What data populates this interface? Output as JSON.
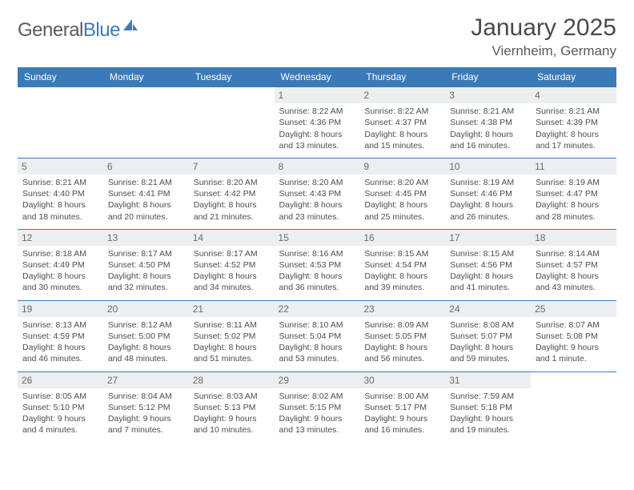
{
  "brand": {
    "name_a": "General",
    "name_b": "Blue",
    "logo_color": "#3b7ab8"
  },
  "title": "January 2025",
  "location": "Viernheim, Germany",
  "colors": {
    "header_bg": "#3b7ab8",
    "header_text": "#ffffff",
    "daynum_bg": "#eceff1",
    "rule": "#3b7ab8",
    "body_text": "#4d4d4d"
  },
  "fonts": {
    "title_pt": 30,
    "location_pt": 17,
    "header_pt": 12,
    "cell_pt": 10.5
  },
  "day_names": [
    "Sunday",
    "Monday",
    "Tuesday",
    "Wednesday",
    "Thursday",
    "Friday",
    "Saturday"
  ],
  "weeks": [
    [
      null,
      null,
      null,
      {
        "n": "1",
        "sr": "8:22 AM",
        "ss": "4:36 PM",
        "dl": "8 hours and 13 minutes."
      },
      {
        "n": "2",
        "sr": "8:22 AM",
        "ss": "4:37 PM",
        "dl": "8 hours and 15 minutes."
      },
      {
        "n": "3",
        "sr": "8:21 AM",
        "ss": "4:38 PM",
        "dl": "8 hours and 16 minutes."
      },
      {
        "n": "4",
        "sr": "8:21 AM",
        "ss": "4:39 PM",
        "dl": "8 hours and 17 minutes."
      }
    ],
    [
      {
        "n": "5",
        "sr": "8:21 AM",
        "ss": "4:40 PM",
        "dl": "8 hours and 18 minutes."
      },
      {
        "n": "6",
        "sr": "8:21 AM",
        "ss": "4:41 PM",
        "dl": "8 hours and 20 minutes."
      },
      {
        "n": "7",
        "sr": "8:20 AM",
        "ss": "4:42 PM",
        "dl": "8 hours and 21 minutes."
      },
      {
        "n": "8",
        "sr": "8:20 AM",
        "ss": "4:43 PM",
        "dl": "8 hours and 23 minutes."
      },
      {
        "n": "9",
        "sr": "8:20 AM",
        "ss": "4:45 PM",
        "dl": "8 hours and 25 minutes."
      },
      {
        "n": "10",
        "sr": "8:19 AM",
        "ss": "4:46 PM",
        "dl": "8 hours and 26 minutes."
      },
      {
        "n": "11",
        "sr": "8:19 AM",
        "ss": "4:47 PM",
        "dl": "8 hours and 28 minutes."
      }
    ],
    [
      {
        "n": "12",
        "sr": "8:18 AM",
        "ss": "4:49 PM",
        "dl": "8 hours and 30 minutes."
      },
      {
        "n": "13",
        "sr": "8:17 AM",
        "ss": "4:50 PM",
        "dl": "8 hours and 32 minutes."
      },
      {
        "n": "14",
        "sr": "8:17 AM",
        "ss": "4:52 PM",
        "dl": "8 hours and 34 minutes."
      },
      {
        "n": "15",
        "sr": "8:16 AM",
        "ss": "4:53 PM",
        "dl": "8 hours and 36 minutes."
      },
      {
        "n": "16",
        "sr": "8:15 AM",
        "ss": "4:54 PM",
        "dl": "8 hours and 39 minutes."
      },
      {
        "n": "17",
        "sr": "8:15 AM",
        "ss": "4:56 PM",
        "dl": "8 hours and 41 minutes."
      },
      {
        "n": "18",
        "sr": "8:14 AM",
        "ss": "4:57 PM",
        "dl": "8 hours and 43 minutes."
      }
    ],
    [
      {
        "n": "19",
        "sr": "8:13 AM",
        "ss": "4:59 PM",
        "dl": "8 hours and 46 minutes."
      },
      {
        "n": "20",
        "sr": "8:12 AM",
        "ss": "5:00 PM",
        "dl": "8 hours and 48 minutes."
      },
      {
        "n": "21",
        "sr": "8:11 AM",
        "ss": "5:02 PM",
        "dl": "8 hours and 51 minutes."
      },
      {
        "n": "22",
        "sr": "8:10 AM",
        "ss": "5:04 PM",
        "dl": "8 hours and 53 minutes."
      },
      {
        "n": "23",
        "sr": "8:09 AM",
        "ss": "5:05 PM",
        "dl": "8 hours and 56 minutes."
      },
      {
        "n": "24",
        "sr": "8:08 AM",
        "ss": "5:07 PM",
        "dl": "8 hours and 59 minutes."
      },
      {
        "n": "25",
        "sr": "8:07 AM",
        "ss": "5:08 PM",
        "dl": "9 hours and 1 minute."
      }
    ],
    [
      {
        "n": "26",
        "sr": "8:05 AM",
        "ss": "5:10 PM",
        "dl": "9 hours and 4 minutes."
      },
      {
        "n": "27",
        "sr": "8:04 AM",
        "ss": "5:12 PM",
        "dl": "9 hours and 7 minutes."
      },
      {
        "n": "28",
        "sr": "8:03 AM",
        "ss": "5:13 PM",
        "dl": "9 hours and 10 minutes."
      },
      {
        "n": "29",
        "sr": "8:02 AM",
        "ss": "5:15 PM",
        "dl": "9 hours and 13 minutes."
      },
      {
        "n": "30",
        "sr": "8:00 AM",
        "ss": "5:17 PM",
        "dl": "9 hours and 16 minutes."
      },
      {
        "n": "31",
        "sr": "7:59 AM",
        "ss": "5:18 PM",
        "dl": "9 hours and 19 minutes."
      },
      null
    ]
  ],
  "labels": {
    "sunrise": "Sunrise: ",
    "sunset": "Sunset: ",
    "daylight": "Daylight: "
  }
}
